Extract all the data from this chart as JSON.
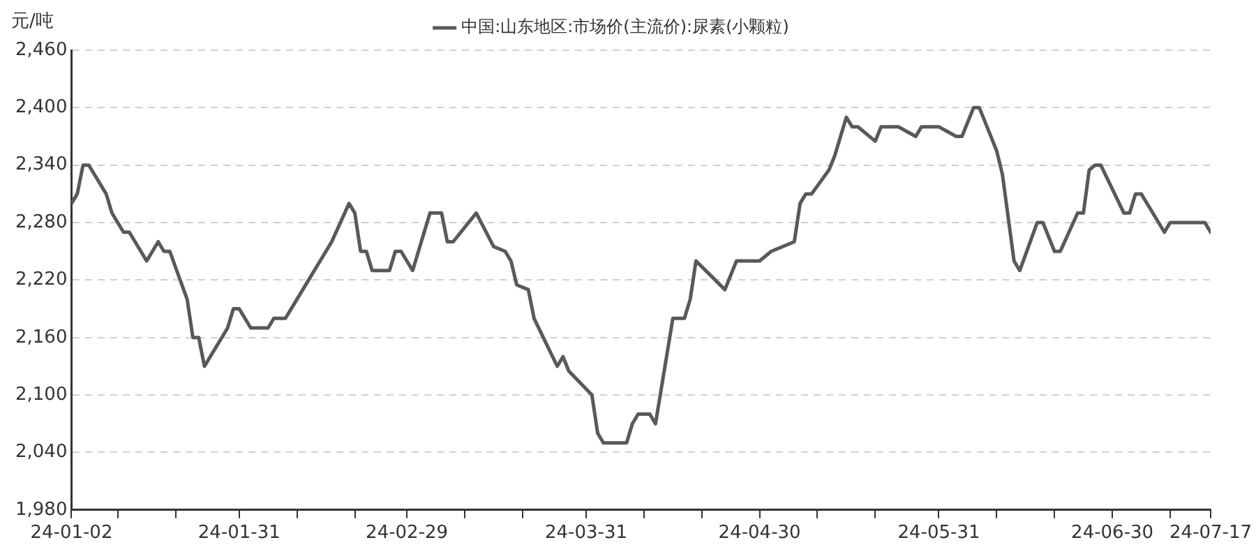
{
  "chart_data": {
    "type": "line",
    "ylabel": "元/吨",
    "x": [
      "--01-02",
      "--01-03",
      "--01-04",
      "--01-05",
      "--01-06",
      "--01-08",
      "--01-09",
      "--01-11",
      "--01-12",
      "--01-15",
      "--01-17",
      "--01-18",
      "--01-19",
      "--01-22",
      "--01-23",
      "--01-24",
      "--01-25",
      "--01-29",
      "--01-30",
      "--01-31",
      "--02-02",
      "--02-05",
      "--02-06",
      "--02-08",
      "--02-10",
      "--02-16",
      "--02-19",
      "--02-20",
      "--02-21",
      "--02-22",
      "--02-23",
      "--02-26",
      "--02-27",
      "--02-28",
      "--03-01",
      "--03-04",
      "--03-06",
      "--03-07",
      "--03-08",
      "--03-12",
      "--03-15",
      "--03-17",
      "--03-18",
      "--03-19",
      "--03-21",
      "--03-22",
      "--03-26",
      "--03-27",
      "--03-28",
      "--04-01",
      "--04-02",
      "--04-03",
      "--04-07",
      "--04-08",
      "--04-09",
      "--04-11",
      "--04-12",
      "--04-15",
      "--04-17",
      "--04-18",
      "--04-19",
      "--04-24",
      "--04-26",
      "--04-30",
      "--05-02",
      "--05-06",
      "--05-07",
      "--05-08",
      "--05-09",
      "--05-12",
      "--05-13",
      "--05-15",
      "--05-16",
      "--05-17",
      "--05-20",
      "--05-21",
      "--05-24",
      "--05-27",
      "--05-28",
      "--05-31",
      "--06-03",
      "--06-04",
      "--06-06",
      "--06-07",
      "--06-10",
      "--06-11",
      "--06-13",
      "--06-14",
      "--06-17",
      "--06-18",
      "--06-20",
      "--06-21",
      "--06-24",
      "--06-25",
      "--06-26",
      "--06-27",
      "--06-28",
      "--07-02",
      "--07-03",
      "--07-04",
      "--07-05",
      "--07-07",
      "--07-09",
      "--07-10",
      "--07-16",
      "--07-17"
    ],
    "series": [
      {
        "name": "中国:山东地区:市场价(主流价):尿素(小颗粒)",
        "color": "#595959",
        "values": [
          2300,
          2310,
          2340,
          2340,
          2330,
          2310,
          2290,
          2270,
          2270,
          2240,
          2260,
          2250,
          2250,
          2200,
          2160,
          2160,
          2130,
          2170,
          2190,
          2190,
          2170,
          2170,
          2180,
          2180,
          2200,
          2260,
          2300,
          2290,
          2250,
          2250,
          2230,
          2230,
          2250,
          2250,
          2230,
          2290,
          2290,
          2260,
          2260,
          2290,
          2255,
          2250,
          2240,
          2215,
          2210,
          2180,
          2130,
          2140,
          2125,
          2100,
          2060,
          2050,
          2050,
          2070,
          2080,
          2080,
          2070,
          2180,
          2180,
          2200,
          2240,
          2210,
          2240,
          2240,
          2250,
          2260,
          2300,
          2310,
          2310,
          2335,
          2350,
          2390,
          2380,
          2380,
          2365,
          2380,
          2380,
          2370,
          2380,
          2380,
          2370,
          2370,
          2400,
          2400,
          2355,
          2330,
          2240,
          2230,
          2280,
          2280,
          2250,
          2250,
          2290,
          2290,
          2335,
          2340,
          2340,
          2290,
          2290,
          2310,
          2310,
          2290,
          2270,
          2280,
          2280,
          2270
        ]
      }
    ],
    "xlim": [
      "--01-02",
      "--07-17"
    ],
    "xticks": [
      {
        "value": "--01-02",
        "label": "24-01-02"
      },
      {
        "value": "--01-10",
        "label": null
      },
      {
        "value": "--01-20",
        "label": null
      },
      {
        "value": "--01-31",
        "label": "24-01-31"
      },
      {
        "value": "--02-10",
        "label": null
      },
      {
        "value": "--02-20",
        "label": null
      },
      {
        "value": "--02-29",
        "label": "24-02-29"
      },
      {
        "value": "--03-10",
        "label": null
      },
      {
        "value": "--03-20",
        "label": null
      },
      {
        "value": "--03-31",
        "label": "24-03-31"
      },
      {
        "value": "--04-10",
        "label": null
      },
      {
        "value": "--04-20",
        "label": null
      },
      {
        "value": "--04-30",
        "label": "24-04-30"
      },
      {
        "value": "--05-10",
        "label": null
      },
      {
        "value": "--05-20",
        "label": null
      },
      {
        "value": "--05-31",
        "label": "24-05-31"
      },
      {
        "value": "--06-10",
        "label": null
      },
      {
        "value": "--06-20",
        "label": null
      },
      {
        "value": "--06-30",
        "label": "24-06-30"
      },
      {
        "value": "--07-10",
        "label": null
      },
      {
        "value": "--07-17",
        "label": "24-07-17"
      }
    ],
    "ylim": [
      1980,
      2460
    ],
    "yticks": [
      {
        "value": 1980,
        "label": "1,980"
      },
      {
        "value": 2040,
        "label": "2,040"
      },
      {
        "value": 2100,
        "label": "2,100"
      },
      {
        "value": 2160,
        "label": "2,160"
      },
      {
        "value": 2220,
        "label": "2,220"
      },
      {
        "value": 2280,
        "label": "2,280"
      },
      {
        "value": 2340,
        "label": "2,340"
      },
      {
        "value": 2400,
        "label": "2,400"
      },
      {
        "value": 2460,
        "label": "2,460"
      }
    ],
    "grid": "y",
    "legend": "top",
    "marker": "none",
    "line_style": "solid"
  }
}
